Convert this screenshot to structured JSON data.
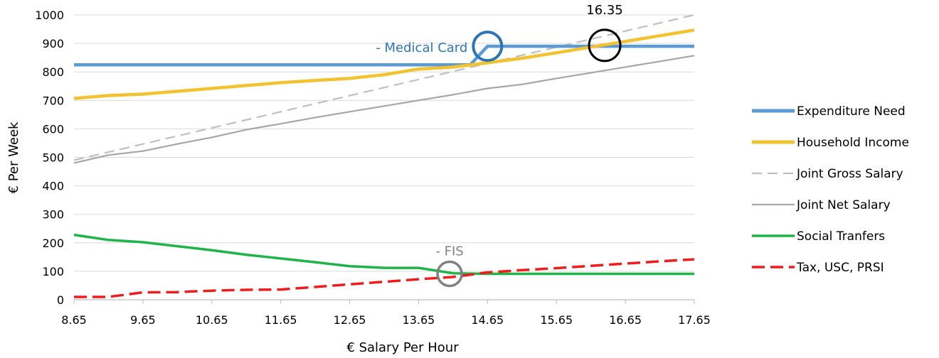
{
  "chart_data": {
    "type": "line",
    "xlabel": "€ Salary Per Hour",
    "ylabel": "€ Per Week",
    "xlim": [
      8.65,
      17.65
    ],
    "ylim": [
      0,
      1000
    ],
    "x_ticks": [
      "8.65",
      "9.65",
      "10.65",
      "11.65",
      "12.65",
      "13.65",
      "14.65",
      "15.65",
      "16.65",
      "17.65"
    ],
    "y_ticks": [
      "0",
      "100",
      "200",
      "300",
      "400",
      "500",
      "600",
      "700",
      "800",
      "900",
      "1000"
    ],
    "grid": "horizontal",
    "legend_position": "right",
    "series": [
      {
        "name": "Expenditure Need",
        "color": "#5b9bd5",
        "style": "solid",
        "points": [
          [
            8.65,
            825
          ],
          [
            14.4,
            825
          ],
          [
            14.65,
            890
          ],
          [
            17.65,
            890
          ]
        ]
      },
      {
        "name": "Household Income",
        "color": "#f2c230",
        "style": "solid",
        "points": [
          [
            8.65,
            707
          ],
          [
            9.15,
            717
          ],
          [
            9.65,
            722
          ],
          [
            10.15,
            732
          ],
          [
            10.65,
            742
          ],
          [
            11.15,
            752
          ],
          [
            11.65,
            762
          ],
          [
            12.15,
            770
          ],
          [
            12.65,
            777
          ],
          [
            13.15,
            790
          ],
          [
            13.65,
            810
          ],
          [
            14.15,
            817
          ],
          [
            14.65,
            832
          ],
          [
            15.15,
            848
          ],
          [
            15.65,
            867
          ],
          [
            16.15,
            887
          ],
          [
            16.65,
            907
          ],
          [
            17.15,
            927
          ],
          [
            17.65,
            947
          ]
        ]
      },
      {
        "name": "Joint Gross Salary",
        "color": "#bfbfbf",
        "style": "dashed",
        "points": [
          [
            8.65,
            490
          ],
          [
            17.65,
            1000
          ]
        ]
      },
      {
        "name": "Joint Net Salary",
        "color": "#a6a6a6",
        "style": "solid",
        "points": [
          [
            8.65,
            480
          ],
          [
            9.15,
            508
          ],
          [
            9.65,
            522
          ],
          [
            10.15,
            547
          ],
          [
            10.65,
            570
          ],
          [
            11.15,
            597
          ],
          [
            11.65,
            618
          ],
          [
            12.15,
            640
          ],
          [
            12.65,
            660
          ],
          [
            13.15,
            680
          ],
          [
            13.65,
            700
          ],
          [
            14.15,
            720
          ],
          [
            14.65,
            742
          ],
          [
            15.15,
            756
          ],
          [
            15.65,
            777
          ],
          [
            16.15,
            797
          ],
          [
            16.65,
            817
          ],
          [
            17.15,
            837
          ],
          [
            17.65,
            857
          ]
        ]
      },
      {
        "name": "Social Tranfers",
        "color": "#1eb44a",
        "style": "solid",
        "points": [
          [
            8.65,
            228
          ],
          [
            9.15,
            210
          ],
          [
            9.65,
            202
          ],
          [
            10.15,
            188
          ],
          [
            10.65,
            174
          ],
          [
            11.15,
            158
          ],
          [
            11.65,
            145
          ],
          [
            12.15,
            132
          ],
          [
            12.65,
            118
          ],
          [
            13.15,
            112
          ],
          [
            13.65,
            112
          ],
          [
            14.15,
            93
          ],
          [
            14.65,
            91
          ],
          [
            15.65,
            91
          ],
          [
            16.65,
            91
          ],
          [
            17.65,
            91
          ]
        ]
      },
      {
        "name": "Tax, USC, PRSI",
        "color": "#ee1c1c",
        "style": "dashed",
        "points": [
          [
            8.65,
            10
          ],
          [
            9.15,
            10
          ],
          [
            9.65,
            26
          ],
          [
            10.15,
            27
          ],
          [
            10.65,
            32
          ],
          [
            11.15,
            35
          ],
          [
            11.65,
            36
          ],
          [
            12.15,
            45
          ],
          [
            12.65,
            54
          ],
          [
            13.15,
            63
          ],
          [
            13.65,
            72
          ],
          [
            14.15,
            80
          ],
          [
            14.65,
            96
          ],
          [
            15.15,
            104
          ],
          [
            15.65,
            111
          ],
          [
            16.15,
            119
          ],
          [
            16.65,
            127
          ],
          [
            17.15,
            135
          ],
          [
            17.65,
            142
          ]
        ]
      }
    ],
    "annotations": [
      {
        "text": "- Medical Card",
        "color": "#2e75b6",
        "circle_color": "#2e75b6",
        "x": 14.65,
        "y": 890
      },
      {
        "text": "16.35",
        "color": "#000000",
        "circle_color": "#000000",
        "x": 16.35,
        "y": 893
      },
      {
        "text": "- FIS",
        "color": "#808080",
        "circle_color": "#808080",
        "x": 14.1,
        "y": 91
      }
    ]
  }
}
